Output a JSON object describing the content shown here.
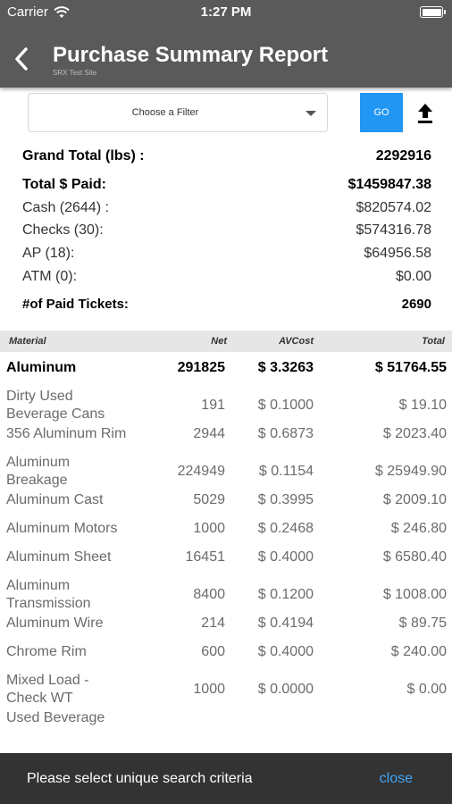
{
  "status_bar": {
    "carrier": "Carrier",
    "time": "1:27 PM"
  },
  "header": {
    "title": "Purchase Summary Report",
    "subtitle": "SRX Test Site"
  },
  "filter": {
    "placeholder": "Choose a Filter",
    "go_label": "GO"
  },
  "summary": {
    "grand_total_label": "Grand Total (lbs) :",
    "grand_total_value": "2292916",
    "total_paid_label": "Total $ Paid:",
    "total_paid_value": "$1459847.38",
    "cash_label": "Cash (2644) :",
    "cash_value": "$820574.02",
    "checks_label": "Checks (30):",
    "checks_value": "$574316.78",
    "ap_label": "AP (18):",
    "ap_value": "$64956.58",
    "atm_label": "ATM (0):",
    "atm_value": "$0.00",
    "tickets_label": "#of Paid Tickets:",
    "tickets_value": "2690"
  },
  "table": {
    "columns": {
      "material": "Material",
      "net": "Net",
      "avcost": "AVCost",
      "total": "Total"
    },
    "group": {
      "material": "Aluminum",
      "net": "291825",
      "avcost": "$ 3.3263",
      "total": "$ 51764.55"
    },
    "rows": [
      {
        "line1": "Dirty Used",
        "line2": "Beverage Cans",
        "net": "191",
        "avcost": "$ 0.1000",
        "total": "$ 19.10"
      },
      {
        "line1": "356 Aluminum Rim",
        "line2": "",
        "net": "2944",
        "avcost": "$ 0.6873",
        "total": "$ 2023.40"
      },
      {
        "line1": "Aluminum",
        "line2": "Breakage",
        "net": "224949",
        "avcost": "$ 0.1154",
        "total": "$ 25949.90"
      },
      {
        "line1": "Aluminum Cast",
        "line2": "",
        "net": "5029",
        "avcost": "$ 0.3995",
        "total": "$ 2009.10"
      },
      {
        "line1": "Aluminum Motors",
        "line2": "",
        "net": "1000",
        "avcost": "$ 0.2468",
        "total": "$ 246.80"
      },
      {
        "line1": "Aluminum Sheet",
        "line2": "",
        "net": "16451",
        "avcost": "$ 0.4000",
        "total": "$ 6580.40"
      },
      {
        "line1": "Aluminum",
        "line2": "Transmission",
        "net": "8400",
        "avcost": "$ 0.1200",
        "total": "$ 1008.00"
      },
      {
        "line1": "Aluminum Wire",
        "line2": "",
        "net": "214",
        "avcost": "$ 0.4194",
        "total": "$ 89.75"
      },
      {
        "line1": "Chrome Rim",
        "line2": "",
        "net": "600",
        "avcost": "$ 0.4000",
        "total": "$ 240.00"
      },
      {
        "line1": "Mixed Load -",
        "line2": "Check WT",
        "net": "1000",
        "avcost": "$ 0.0000",
        "total": "$ 0.00"
      },
      {
        "line1": "Used Beverage",
        "line2": "",
        "net": "",
        "avcost": "",
        "total": ""
      }
    ]
  },
  "snackbar": {
    "message": "Please select unique search criteria",
    "action": "close"
  },
  "icons": {
    "back": "chevron-left-icon",
    "wifi": "wifi-icon",
    "battery": "battery-icon",
    "dropdown": "caret-down-icon",
    "export": "upload-icon"
  },
  "colors": {
    "header_bg": "#5a5a5a",
    "go_button": "#2196f3",
    "snackbar_bg": "#333333",
    "snackbar_action": "#42a5f5",
    "table_header_bg": "#e6e6e6"
  }
}
